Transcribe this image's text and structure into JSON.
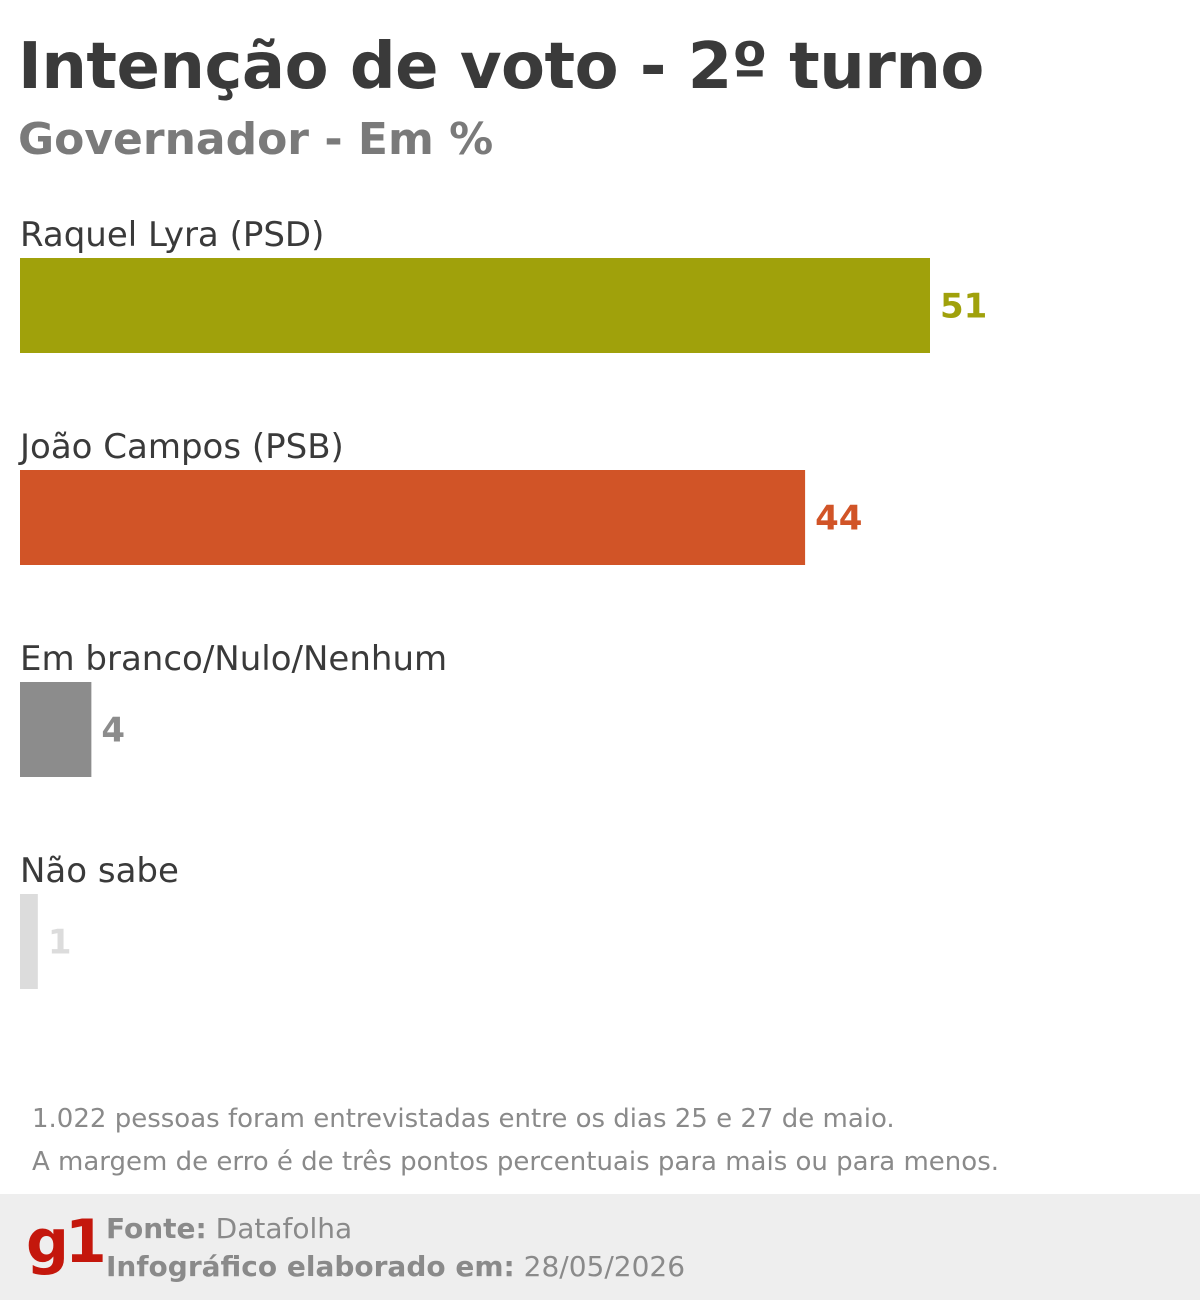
{
  "title": "Intenção de voto - 2º turno",
  "subtitle": "Governador - Em %",
  "chart_data": {
    "type": "bar",
    "orientation": "horizontal",
    "categories": [
      "Raquel Lyra (PSD)",
      "João Campos (PSB)",
      "Em branco/Nulo/Nenhum",
      "Não sabe"
    ],
    "values": [
      51,
      44,
      4,
      1
    ],
    "colors": [
      "#a0a10b",
      "#d15427",
      "#8c8c8c",
      "#dcdcdc"
    ],
    "title": "Intenção de voto - 2º turno",
    "subtitle": "Governador - Em %",
    "xlim": [
      0,
      51
    ],
    "grid": false,
    "legend": "none"
  },
  "notes": [
    "1.022 pessoas foram entrevistadas entre os dias 25 e 27 de maio.",
    "A margem de erro é de três pontos percentuais para mais ou para menos."
  ],
  "footer": {
    "logo": "g1",
    "source_label": "Fonte:",
    "source_value": "Datafolha",
    "date_label": "Infográfico elaborado em:",
    "date_value": "28/05/2026"
  }
}
